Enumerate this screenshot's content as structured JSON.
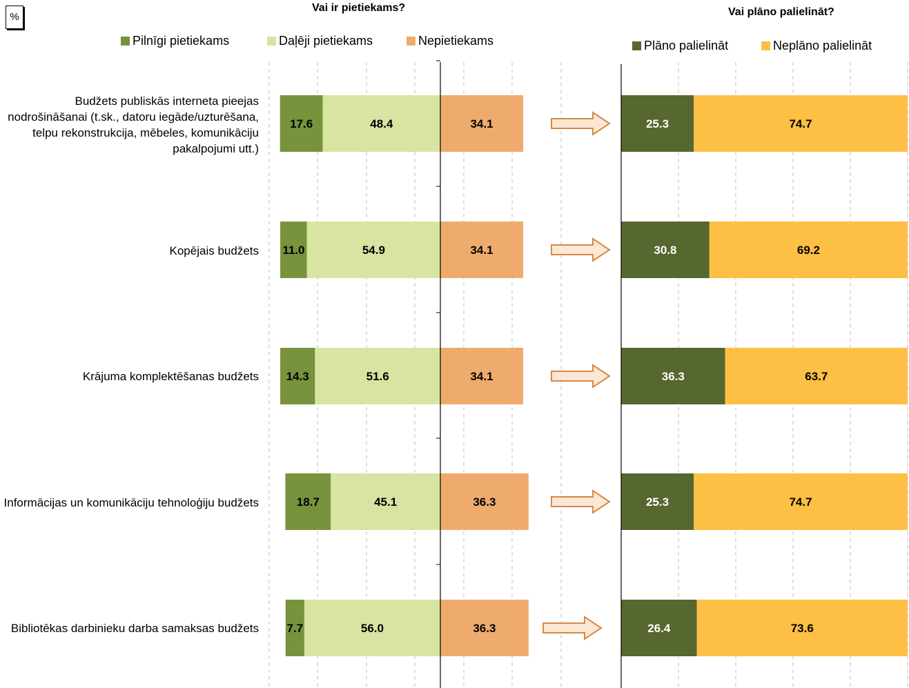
{
  "unit_label": "%",
  "colors": {
    "full": "#77933c",
    "partial": "#d7e4a2",
    "insufficient": "#efab6d",
    "plan": "#56672f",
    "noplan": "#fdbf44",
    "arrow_stroke": "#d48a44",
    "arrow_fill": "#fbe7d3",
    "grid": "#bfbfbf"
  },
  "chart_data": [
    {
      "type": "bar",
      "orientation": "horizontal",
      "stacked": "diverging",
      "title": "Vai ir pietiekams?",
      "categories": [
        "Budžets publiskās interneta pieejas nodrošināšanai (t.sk., datoru iegāde/uzturēšana, telpu rekonstrukcija, mēbeles, komunikāciju pakalpojumi utt.)",
        "Kopējais budžets",
        "Krājuma komplektēšanas budžets",
        "Informācijas un komunikāciju tehnoloģiju budžets",
        "Bibliotēkas darbinieku darba samaksas budžets"
      ],
      "series": [
        {
          "name": "Pilnīgi pietiekams",
          "values": [
            17.6,
            11.0,
            14.3,
            18.7,
            7.7
          ]
        },
        {
          "name": "Daļēji pietiekams",
          "values": [
            48.4,
            54.9,
            51.6,
            45.1,
            56.0
          ]
        },
        {
          "name": "Nepietiekams",
          "values": [
            34.1,
            34.1,
            34.1,
            36.3,
            36.3
          ]
        }
      ],
      "legend": "top",
      "grid": true
    },
    {
      "type": "bar",
      "orientation": "horizontal",
      "stacked": true,
      "title": "Vai plāno palielināt?",
      "categories": [
        "Budžets publiskās interneta pieejas nodrošināšanai (t.sk., datoru iegāde/uzturēšana, telpu rekonstrukcija, mēbeles, komunikāciju pakalpojumi utt.)",
        "Kopējais budžets",
        "Krājuma komplektēšanas budžets",
        "Informācijas un komunikāciju tehnoloģiju budžets",
        "Bibliotēkas darbinieku darba samaksas budžets"
      ],
      "series": [
        {
          "name": "Plāno palielināt",
          "values": [
            25.3,
            30.8,
            36.3,
            25.3,
            26.4
          ]
        },
        {
          "name": "Neplāno palielināt",
          "values": [
            74.7,
            69.2,
            63.7,
            74.7,
            73.6
          ]
        }
      ],
      "xlim": [
        0,
        100
      ],
      "legend": "top",
      "grid": true
    }
  ]
}
